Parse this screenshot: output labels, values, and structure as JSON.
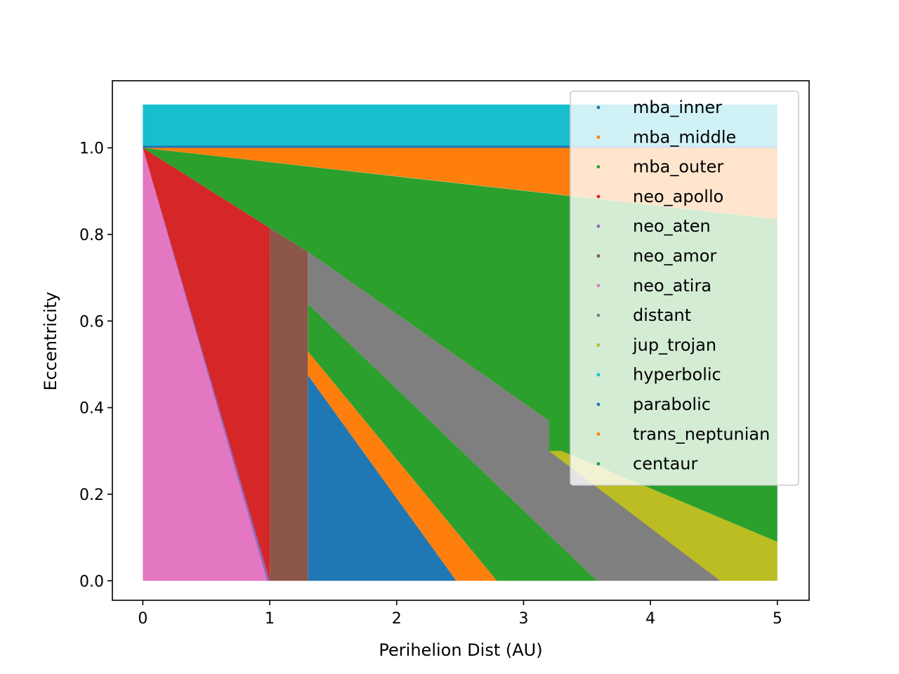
{
  "chart_data": {
    "type": "scatter",
    "title": "",
    "xlabel": "Perihelion Dist (AU)",
    "ylabel": "Eccentricity",
    "xlim": [
      -0.24,
      5.25
    ],
    "ylim": [
      -0.045,
      1.155
    ],
    "x_ticks": [
      0,
      1,
      2,
      3,
      4,
      5
    ],
    "y_ticks": [
      0.0,
      0.2,
      0.4,
      0.6,
      0.8,
      1.0
    ],
    "y_tick_labels": [
      "0.0",
      "0.2",
      "0.4",
      "0.6",
      "0.8",
      "1.0"
    ],
    "grid": false,
    "legend": {
      "placement": "top-right"
    },
    "series": [
      {
        "name": "mba_inner",
        "color": "#1f77b4",
        "regions": [
          [
            [
              1.3,
              0.0
            ],
            [
              1.3,
              0.475
            ],
            [
              2.47,
              0.0
            ]
          ]
        ]
      },
      {
        "name": "mba_middle",
        "color": "#ff7f0e",
        "regions": [
          [
            [
              1.3,
              0.0
            ],
            [
              1.3,
              0.53
            ],
            [
              2.79,
              0.0
            ],
            [
              2.47,
              0.0
            ],
            [
              1.3,
              0.475
            ]
          ]
        ]
      },
      {
        "name": "mba_outer",
        "color": "#2ca02c",
        "regions": [
          [
            [
              1.3,
              0.0
            ],
            [
              1.3,
              0.64
            ],
            [
              3.58,
              0.0
            ],
            [
              2.79,
              0.0
            ],
            [
              1.3,
              0.53
            ]
          ]
        ]
      },
      {
        "name": "neo_apollo",
        "color": "#d62728",
        "regions": [
          [
            [
              0.0,
              1.0
            ],
            [
              1.0,
              0.815
            ],
            [
              1.0,
              0.0
            ],
            [
              0.98,
              0.0
            ]
          ]
        ]
      },
      {
        "name": "neo_aten",
        "color": "#9467bd",
        "regions": [
          [
            [
              0.0,
              1.0
            ],
            [
              0.98,
              0.0
            ],
            [
              1.0,
              0.0
            ],
            [
              1.0,
              0.0
            ]
          ]
        ]
      },
      {
        "name": "neo_amor",
        "color": "#8c564b",
        "regions": [
          [
            [
              1.0,
              0.0
            ],
            [
              1.0,
              0.815
            ],
            [
              1.3,
              0.76
            ],
            [
              1.3,
              0.0
            ]
          ]
        ]
      },
      {
        "name": "neo_atira",
        "color": "#e377c2",
        "regions": [
          [
            [
              0.0,
              0.0
            ],
            [
              0.0,
              1.0
            ],
            [
              0.98,
              0.0
            ]
          ]
        ]
      },
      {
        "name": "distant",
        "color": "#7f7f7f",
        "regions": [
          [
            [
              1.3,
              0.64
            ],
            [
              1.3,
              0.76
            ],
            [
              3.2,
              0.37
            ],
            [
              4.55,
              0.0
            ],
            [
              3.58,
              0.0
            ]
          ]
        ]
      },
      {
        "name": "jup_trojan",
        "color": "#bcbd22",
        "regions": [
          [
            [
              3.2,
              0.3
            ],
            [
              3.3,
              0.3
            ],
            [
              5.0,
              0.09
            ],
            [
              5.0,
              0.0
            ],
            [
              4.55,
              0.0
            ],
            [
              3.2,
              0.3
            ]
          ]
        ]
      },
      {
        "name": "hyperbolic",
        "color": "#17becf",
        "regions": [
          [
            [
              0.0,
              1.005
            ],
            [
              0.0,
              1.1
            ],
            [
              5.0,
              1.1
            ],
            [
              5.0,
              1.005
            ]
          ]
        ]
      },
      {
        "name": "parabolic",
        "color": "#1f77b4",
        "regions": [
          [
            [
              0.0,
              0.998
            ],
            [
              0.0,
              1.005
            ],
            [
              5.0,
              1.005
            ],
            [
              5.0,
              0.998
            ]
          ]
        ]
      },
      {
        "name": "trans_neptunian",
        "color": "#ff7f0e",
        "regions": [
          [
            [
              0.0,
              1.0
            ],
            [
              5.0,
              1.0
            ],
            [
              5.0,
              0.835
            ],
            [
              2.5,
              0.918
            ]
          ]
        ]
      },
      {
        "name": "centaur",
        "color": "#2ca02c",
        "regions": [
          [
            [
              0.0,
              1.0
            ],
            [
              5.0,
              0.835
            ],
            [
              5.0,
              0.09
            ],
            [
              3.3,
              0.3
            ],
            [
              3.2,
              0.3
            ],
            [
              3.2,
              0.37
            ],
            [
              1.3,
              0.76
            ],
            [
              1.0,
              0.815
            ]
          ]
        ]
      }
    ]
  }
}
